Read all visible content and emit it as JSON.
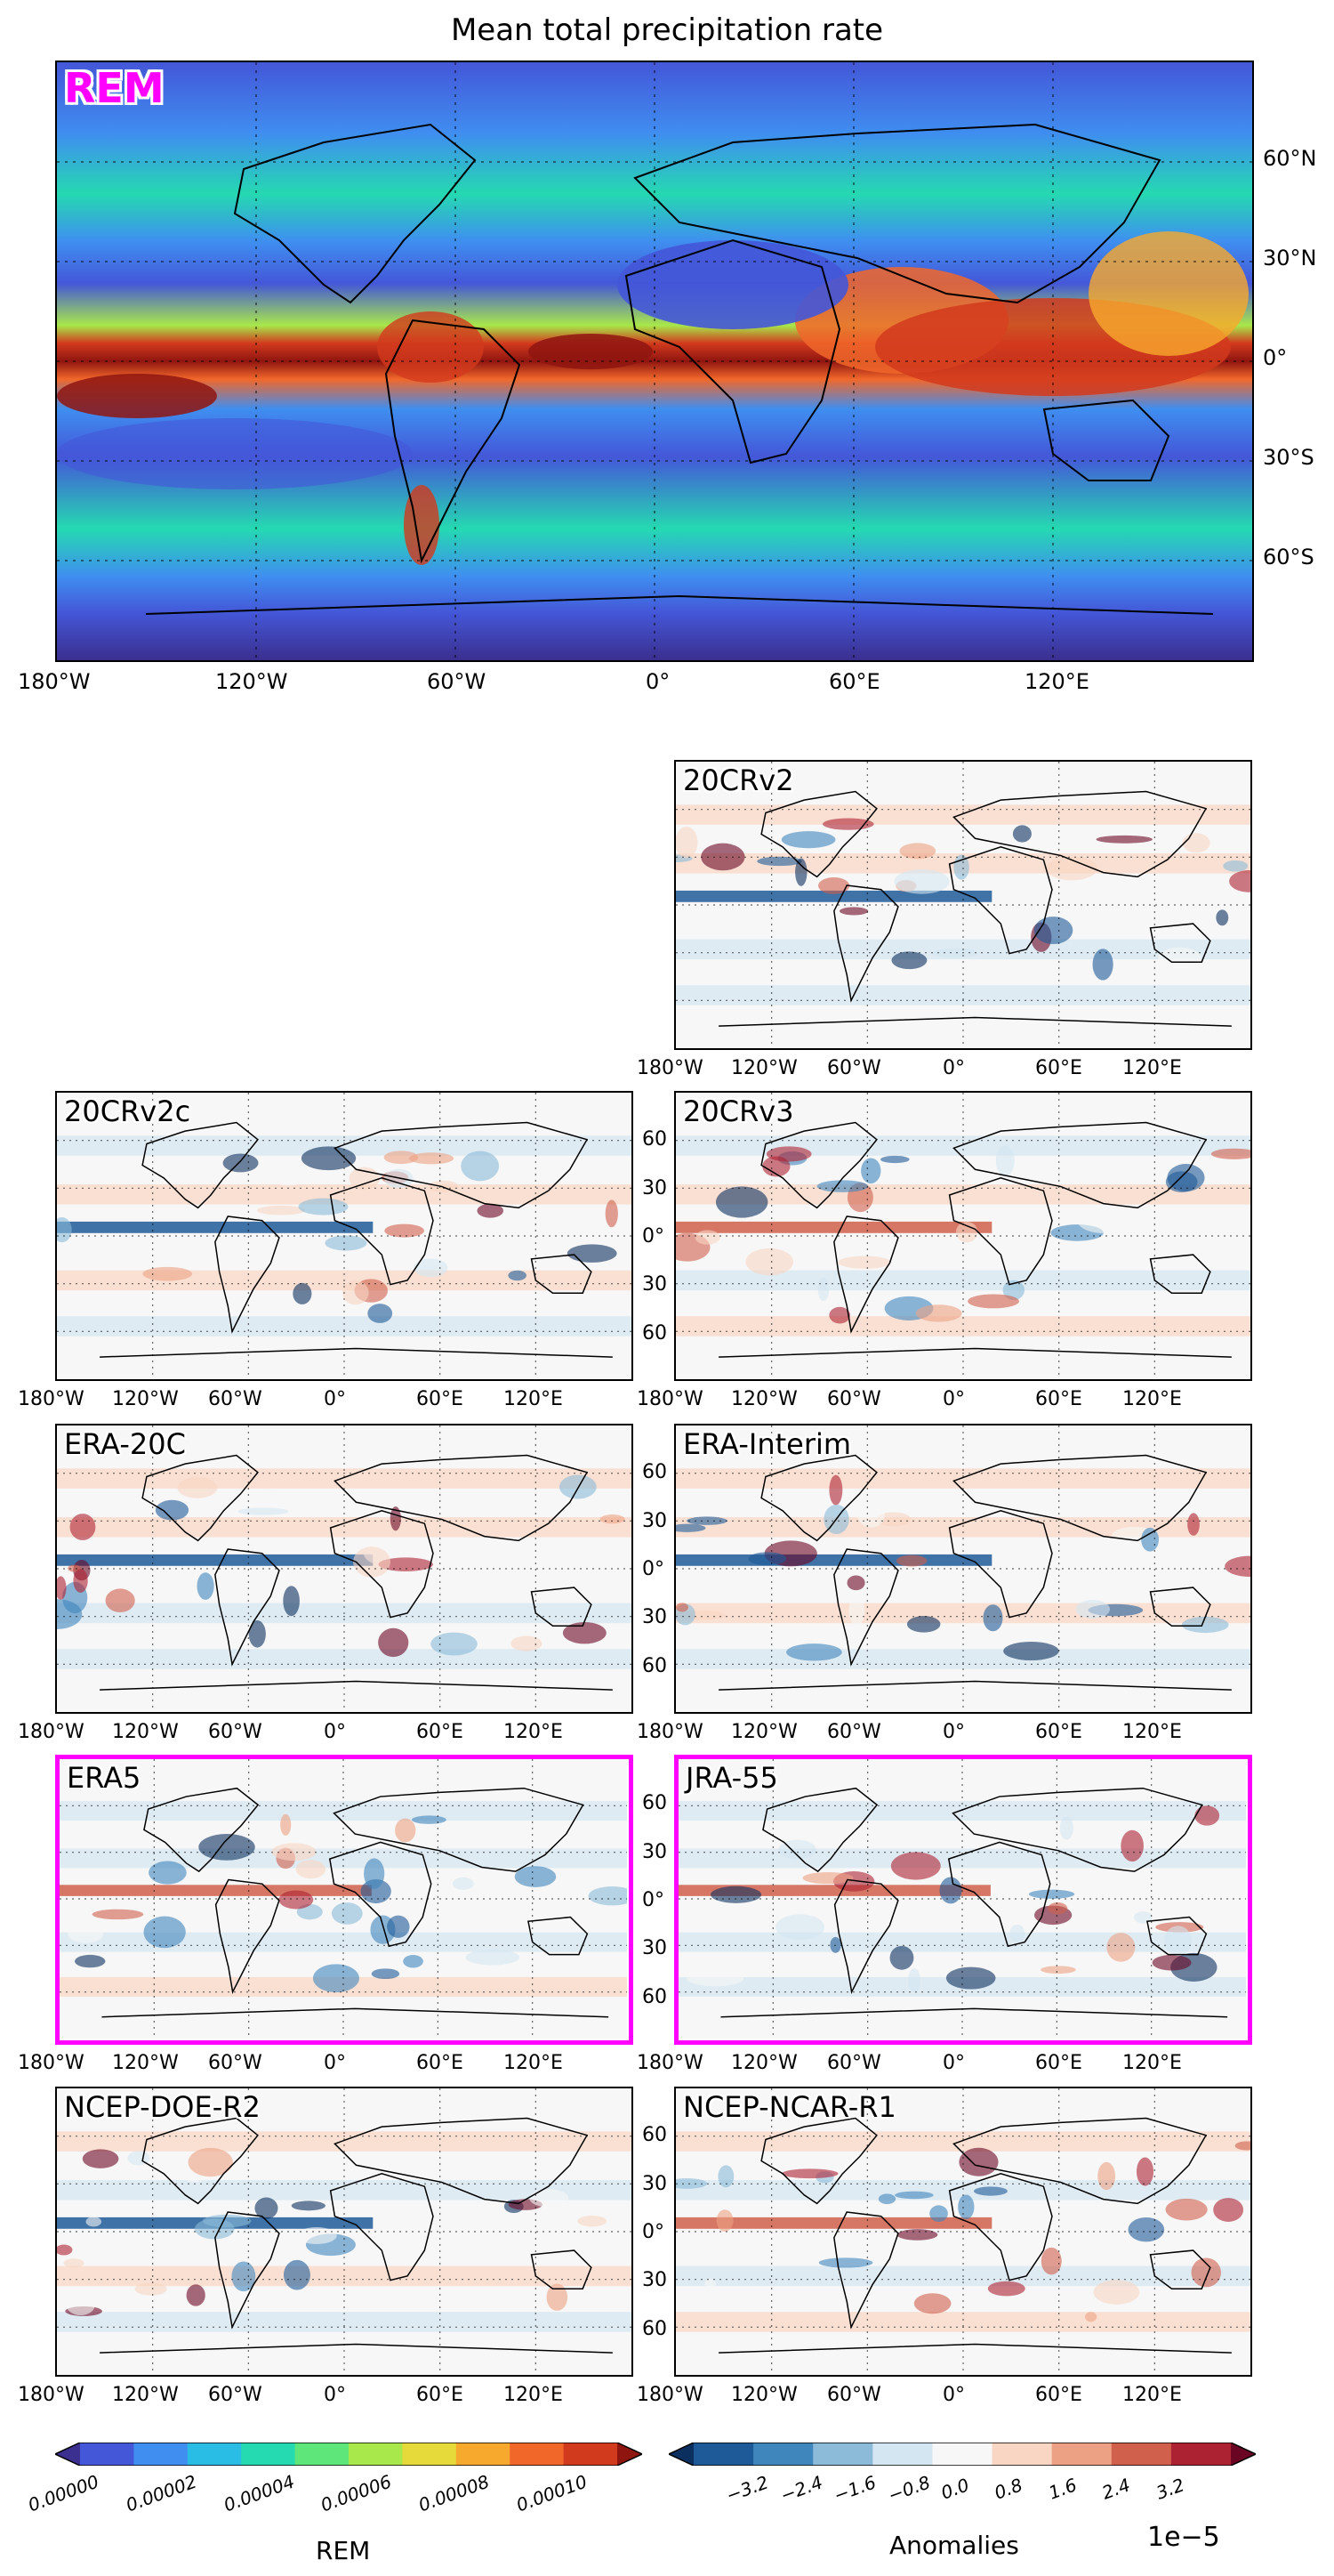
{
  "title": "Mean total precipitation rate",
  "chart_data": [
    {
      "type": "heatmap",
      "name": "REM",
      "label": "REM",
      "x_ticks": [
        "180°W",
        "120°W",
        "60°W",
        "0°",
        "60°E",
        "120°E"
      ],
      "y_ticks": [
        "60°N",
        "30°N",
        "0°",
        "30°S",
        "60°S"
      ],
      "colorbar_label": "REM",
      "colorbar_ticks": [
        "0.00000",
        "0.00002",
        "0.00004",
        "0.00006",
        "0.00008",
        "0.00010"
      ],
      "colorbar_range": [
        0,
        0.00011
      ]
    },
    {
      "type": "heatmap",
      "panels": [
        {
          "label": "20CRv2",
          "highlighted": false,
          "y_ticks": []
        },
        {
          "label": "20CRv2c",
          "highlighted": false,
          "y_ticks": []
        },
        {
          "label": "20CRv3",
          "highlighted": false,
          "y_ticks": [
            "60",
            "30",
            "0°",
            "30",
            "60"
          ]
        },
        {
          "label": "ERA-20C",
          "highlighted": false,
          "y_ticks": []
        },
        {
          "label": "ERA-Interim",
          "highlighted": false,
          "y_ticks": [
            "60",
            "30",
            "0°",
            "30",
            "60"
          ]
        },
        {
          "label": "ERA5",
          "highlighted": true,
          "y_ticks": []
        },
        {
          "label": "JRA-55",
          "highlighted": true,
          "y_ticks": [
            "60",
            "30",
            "0°",
            "30",
            "60"
          ]
        },
        {
          "label": "NCEP-DOE-R2",
          "highlighted": false,
          "y_ticks": []
        },
        {
          "label": "NCEP-NCAR-R1",
          "highlighted": false,
          "y_ticks": [
            "60",
            "30",
            "0°",
            "30",
            "60"
          ]
        }
      ],
      "x_ticks": [
        "180°W",
        "120°W",
        "60°W",
        "0°",
        "60°E",
        "120°E"
      ],
      "colorbar_label": "Anomalies",
      "colorbar_scale": "1e−5",
      "colorbar_ticks": [
        "−3.2",
        "−2.4",
        "−1.6",
        "−0.8",
        "0.0",
        "0.8",
        "1.6",
        "2.4",
        "3.2"
      ],
      "colorbar_range": [
        -4.0,
        4.0
      ]
    }
  ],
  "colors": {
    "highlight": "#ff00ff",
    "rem_palette": [
      "#3b2f8f",
      "#4457d8",
      "#3f8ef0",
      "#29bde6",
      "#25d9b1",
      "#5ee67a",
      "#a8e84a",
      "#e6d93a",
      "#f7a92d",
      "#f1672a",
      "#d23a1d",
      "#8f1510"
    ],
    "anom_palette": [
      "#0b2f5e",
      "#1e5a98",
      "#3f86bd",
      "#8bbbd9",
      "#d4e6f1",
      "#f7f7f7",
      "#f9d5c3",
      "#eca184",
      "#d05f4b",
      "#ad2232",
      "#6a0624"
    ]
  }
}
